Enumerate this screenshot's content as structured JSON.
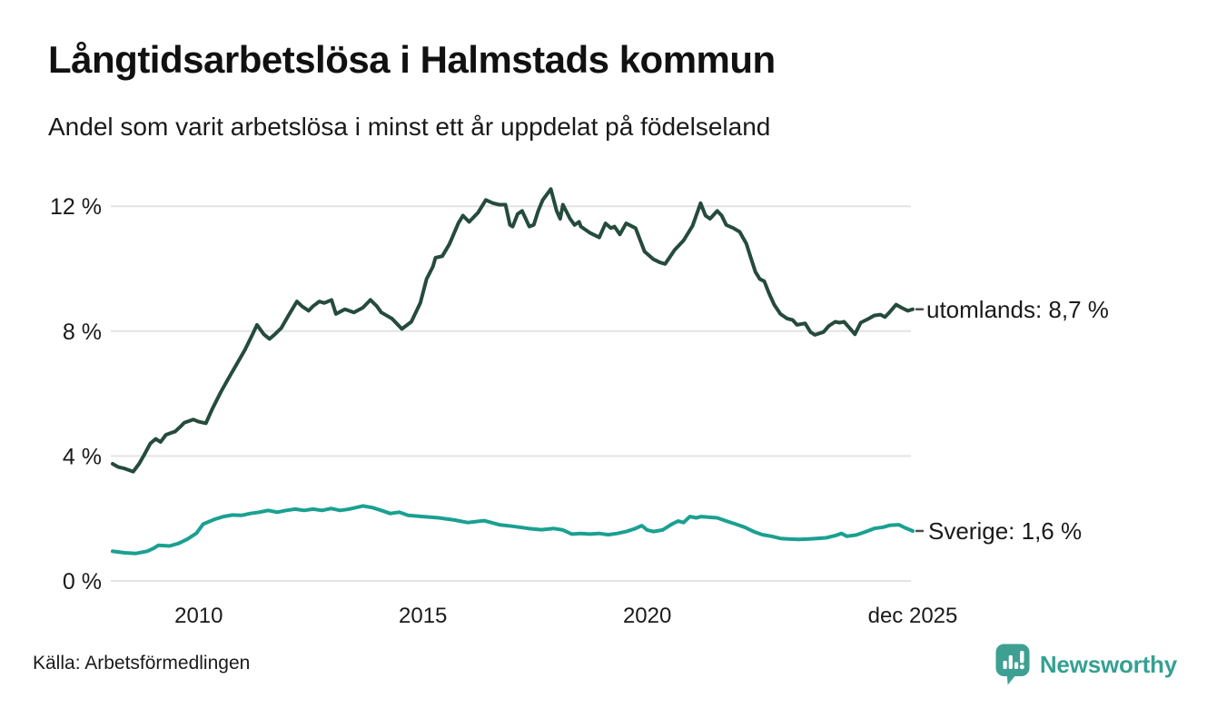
{
  "header": {
    "title": "Långtidsarbetslösa i Halmstads kommun",
    "subtitle": "Andel som varit arbetslösa i minst ett år uppdelat på födelseland"
  },
  "footer": {
    "source": "Källa: Arbetsförmedlingen",
    "brand": "Newsworthy"
  },
  "colors": {
    "grid": "#e3e3e3",
    "text": "#1a1a1a",
    "leader_dash": "#4d4d4d",
    "brand_teal": "#35a093"
  },
  "chart_data": {
    "type": "line",
    "title": "Långtidsarbetslösa i Halmstads kommun",
    "subtitle": "Andel som varit arbetslösa i minst ett år uppdelat på födelseland",
    "grid": true,
    "legend_position": "right-end-labels",
    "x_axis": {
      "range": [
        2008.04,
        2025.92
      ],
      "ticks": [
        {
          "value": 2010,
          "label": "2010"
        },
        {
          "value": 2015,
          "label": "2015"
        },
        {
          "value": 2020,
          "label": "2020"
        },
        {
          "value": 2025.92,
          "label": "dec 2025"
        }
      ]
    },
    "y_axis": {
      "range": [
        0,
        12.8
      ],
      "unit": "%",
      "ticks": [
        {
          "value": 0,
          "label": "0 %"
        },
        {
          "value": 4,
          "label": "4 %"
        },
        {
          "value": 8,
          "label": "8 %"
        },
        {
          "value": 12,
          "label": "12 %"
        }
      ]
    },
    "series": [
      {
        "name": "utomlands",
        "end_label": "utomlands: 8,7 %",
        "end_value": 8.7,
        "color": "#254b3c",
        "points": [
          [
            2008.08,
            3.75
          ],
          [
            2008.2,
            3.65
          ],
          [
            2008.35,
            3.6
          ],
          [
            2008.54,
            3.5
          ],
          [
            2008.67,
            3.75
          ],
          [
            2008.79,
            4.05
          ],
          [
            2008.92,
            4.4
          ],
          [
            2009.04,
            4.55
          ],
          [
            2009.15,
            4.45
          ],
          [
            2009.27,
            4.68
          ],
          [
            2009.4,
            4.75
          ],
          [
            2009.47,
            4.78
          ],
          [
            2009.6,
            4.95
          ],
          [
            2009.68,
            5.07
          ],
          [
            2009.88,
            5.17
          ],
          [
            2010.0,
            5.1
          ],
          [
            2010.16,
            5.05
          ],
          [
            2010.3,
            5.5
          ],
          [
            2010.49,
            6.04
          ],
          [
            2010.63,
            6.4
          ],
          [
            2010.83,
            6.9
          ],
          [
            2011.03,
            7.4
          ],
          [
            2011.2,
            7.9
          ],
          [
            2011.3,
            8.2
          ],
          [
            2011.45,
            7.9
          ],
          [
            2011.58,
            7.75
          ],
          [
            2011.7,
            7.9
          ],
          [
            2011.84,
            8.1
          ],
          [
            2012.0,
            8.5
          ],
          [
            2012.19,
            8.95
          ],
          [
            2012.3,
            8.8
          ],
          [
            2012.45,
            8.65
          ],
          [
            2012.55,
            8.8
          ],
          [
            2012.69,
            8.95
          ],
          [
            2012.8,
            8.9
          ],
          [
            2012.96,
            9.0
          ],
          [
            2013.06,
            8.55
          ],
          [
            2013.26,
            8.7
          ],
          [
            2013.46,
            8.6
          ],
          [
            2013.66,
            8.75
          ],
          [
            2013.83,
            9.0
          ],
          [
            2013.97,
            8.8
          ],
          [
            2014.07,
            8.6
          ],
          [
            2014.31,
            8.4
          ],
          [
            2014.53,
            8.07
          ],
          [
            2014.74,
            8.3
          ],
          [
            2014.94,
            8.9
          ],
          [
            2015.08,
            9.67
          ],
          [
            2015.22,
            10.06
          ],
          [
            2015.28,
            10.35
          ],
          [
            2015.43,
            10.4
          ],
          [
            2015.59,
            10.79
          ],
          [
            2015.79,
            11.46
          ],
          [
            2015.89,
            11.7
          ],
          [
            2016.03,
            11.5
          ],
          [
            2016.23,
            11.8
          ],
          [
            2016.4,
            12.2
          ],
          [
            2016.56,
            12.1
          ],
          [
            2016.7,
            12.05
          ],
          [
            2016.84,
            12.05
          ],
          [
            2016.94,
            11.4
          ],
          [
            2017.0,
            11.35
          ],
          [
            2017.11,
            11.75
          ],
          [
            2017.21,
            11.85
          ],
          [
            2017.37,
            11.35
          ],
          [
            2017.47,
            11.4
          ],
          [
            2017.57,
            11.85
          ],
          [
            2017.67,
            12.2
          ],
          [
            2017.85,
            12.55
          ],
          [
            2017.98,
            11.85
          ],
          [
            2018.06,
            11.6
          ],
          [
            2018.12,
            12.05
          ],
          [
            2018.28,
            11.6
          ],
          [
            2018.38,
            11.4
          ],
          [
            2018.48,
            11.5
          ],
          [
            2018.52,
            11.35
          ],
          [
            2018.72,
            11.15
          ],
          [
            2018.93,
            11.0
          ],
          [
            2019.07,
            11.45
          ],
          [
            2019.19,
            11.3
          ],
          [
            2019.27,
            11.35
          ],
          [
            2019.39,
            11.1
          ],
          [
            2019.53,
            11.45
          ],
          [
            2019.74,
            11.3
          ],
          [
            2019.94,
            10.55
          ],
          [
            2020.14,
            10.3
          ],
          [
            2020.28,
            10.2
          ],
          [
            2020.4,
            10.15
          ],
          [
            2020.61,
            10.6
          ],
          [
            2020.81,
            10.9
          ],
          [
            2021.01,
            11.37
          ],
          [
            2021.19,
            12.1
          ],
          [
            2021.3,
            11.7
          ],
          [
            2021.4,
            11.6
          ],
          [
            2021.56,
            11.85
          ],
          [
            2021.66,
            11.7
          ],
          [
            2021.76,
            11.4
          ],
          [
            2021.92,
            11.3
          ],
          [
            2022.06,
            11.18
          ],
          [
            2022.21,
            10.8
          ],
          [
            2022.31,
            10.35
          ],
          [
            2022.41,
            9.9
          ],
          [
            2022.51,
            9.67
          ],
          [
            2022.61,
            9.6
          ],
          [
            2022.71,
            9.23
          ],
          [
            2022.83,
            8.85
          ],
          [
            2022.97,
            8.55
          ],
          [
            2023.12,
            8.4
          ],
          [
            2023.24,
            8.36
          ],
          [
            2023.34,
            8.2
          ],
          [
            2023.52,
            8.25
          ],
          [
            2023.64,
            7.97
          ],
          [
            2023.74,
            7.88
          ],
          [
            2023.93,
            7.97
          ],
          [
            2024.05,
            8.17
          ],
          [
            2024.19,
            8.3
          ],
          [
            2024.29,
            8.27
          ],
          [
            2024.39,
            8.3
          ],
          [
            2024.53,
            8.07
          ],
          [
            2024.63,
            7.9
          ],
          [
            2024.76,
            8.27
          ],
          [
            2024.94,
            8.4
          ],
          [
            2025.06,
            8.5
          ],
          [
            2025.2,
            8.53
          ],
          [
            2025.3,
            8.45
          ],
          [
            2025.4,
            8.6
          ],
          [
            2025.55,
            8.85
          ],
          [
            2025.67,
            8.75
          ],
          [
            2025.81,
            8.65
          ],
          [
            2025.92,
            8.7
          ]
        ]
      },
      {
        "name": "Sverige",
        "end_label": "Sverige: 1,6 %",
        "end_value": 1.6,
        "color": "#1aa091",
        "points": [
          [
            2008.08,
            0.95
          ],
          [
            2008.35,
            0.9
          ],
          [
            2008.6,
            0.88
          ],
          [
            2008.85,
            0.95
          ],
          [
            2009.0,
            1.05
          ],
          [
            2009.1,
            1.14
          ],
          [
            2009.35,
            1.12
          ],
          [
            2009.55,
            1.2
          ],
          [
            2009.75,
            1.34
          ],
          [
            2009.95,
            1.53
          ],
          [
            2010.1,
            1.82
          ],
          [
            2010.35,
            1.97
          ],
          [
            2010.55,
            2.06
          ],
          [
            2010.75,
            2.11
          ],
          [
            2010.95,
            2.1
          ],
          [
            2011.15,
            2.16
          ],
          [
            2011.35,
            2.2
          ],
          [
            2011.55,
            2.26
          ],
          [
            2011.75,
            2.2
          ],
          [
            2011.95,
            2.26
          ],
          [
            2012.15,
            2.3
          ],
          [
            2012.35,
            2.26
          ],
          [
            2012.55,
            2.3
          ],
          [
            2012.75,
            2.26
          ],
          [
            2012.95,
            2.32
          ],
          [
            2013.15,
            2.26
          ],
          [
            2013.35,
            2.3
          ],
          [
            2013.66,
            2.4
          ],
          [
            2013.87,
            2.35
          ],
          [
            2014.07,
            2.26
          ],
          [
            2014.27,
            2.16
          ],
          [
            2014.47,
            2.2
          ],
          [
            2014.67,
            2.1
          ],
          [
            2015.0,
            2.06
          ],
          [
            2015.35,
            2.02
          ],
          [
            2015.7,
            1.95
          ],
          [
            2016.0,
            1.87
          ],
          [
            2016.36,
            1.93
          ],
          [
            2016.7,
            1.8
          ],
          [
            2017.0,
            1.75
          ],
          [
            2017.35,
            1.68
          ],
          [
            2017.64,
            1.64
          ],
          [
            2017.91,
            1.68
          ],
          [
            2018.12,
            1.63
          ],
          [
            2018.32,
            1.5
          ],
          [
            2018.52,
            1.52
          ],
          [
            2018.72,
            1.5
          ],
          [
            2018.93,
            1.52
          ],
          [
            2019.13,
            1.48
          ],
          [
            2019.33,
            1.52
          ],
          [
            2019.53,
            1.58
          ],
          [
            2019.74,
            1.68
          ],
          [
            2019.88,
            1.77
          ],
          [
            2020.0,
            1.63
          ],
          [
            2020.14,
            1.58
          ],
          [
            2020.34,
            1.63
          ],
          [
            2020.55,
            1.82
          ],
          [
            2020.69,
            1.92
          ],
          [
            2020.81,
            1.87
          ],
          [
            2020.95,
            2.06
          ],
          [
            2021.09,
            2.02
          ],
          [
            2021.21,
            2.06
          ],
          [
            2021.36,
            2.04
          ],
          [
            2021.56,
            2.02
          ],
          [
            2021.76,
            1.92
          ],
          [
            2021.97,
            1.82
          ],
          [
            2022.17,
            1.72
          ],
          [
            2022.37,
            1.58
          ],
          [
            2022.57,
            1.48
          ],
          [
            2022.77,
            1.43
          ],
          [
            2022.97,
            1.36
          ],
          [
            2023.18,
            1.34
          ],
          [
            2023.38,
            1.33
          ],
          [
            2023.58,
            1.34
          ],
          [
            2023.78,
            1.36
          ],
          [
            2023.99,
            1.38
          ],
          [
            2024.19,
            1.45
          ],
          [
            2024.33,
            1.52
          ],
          [
            2024.45,
            1.43
          ],
          [
            2024.66,
            1.47
          ],
          [
            2024.86,
            1.57
          ],
          [
            2025.06,
            1.68
          ],
          [
            2025.26,
            1.72
          ],
          [
            2025.4,
            1.78
          ],
          [
            2025.61,
            1.8
          ],
          [
            2025.75,
            1.7
          ],
          [
            2025.92,
            1.6
          ]
        ]
      }
    ]
  }
}
